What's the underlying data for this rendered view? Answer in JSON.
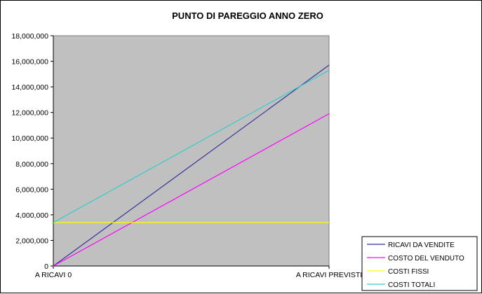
{
  "chart_data": {
    "type": "line",
    "title": "PUNTO DI PAREGGIO ANNO ZERO",
    "categories": [
      "A RICAVI 0",
      "A RICAVI PREVISTI"
    ],
    "ylim": [
      0,
      18000000
    ],
    "yticks": [
      0,
      2000000,
      4000000,
      6000000,
      8000000,
      10000000,
      12000000,
      14000000,
      16000000,
      18000000
    ],
    "ytick_labels": [
      "0",
      "2,000,000",
      "4,000,000",
      "6,000,000",
      "8,000,000",
      "10,000,000",
      "12,000,000",
      "14,000,000",
      "16,000,000",
      "18,000,000"
    ],
    "plot_background": "#c0c0c0",
    "grid": false,
    "legend_position": "bottom-right",
    "series": [
      {
        "name": "RICAVI DA VENDITE",
        "values": [
          0,
          15700000
        ],
        "color": "#333399"
      },
      {
        "name": "COSTO DEL VENDUTO",
        "values": [
          0,
          11900000
        ],
        "color": "#ff00ff"
      },
      {
        "name": "COSTI FISSI",
        "values": [
          3400000,
          3400000
        ],
        "color": "#ffff00"
      },
      {
        "name": "COSTI TOTALI",
        "values": [
          3400000,
          15300000
        ],
        "color": "#33cccc"
      }
    ]
  }
}
